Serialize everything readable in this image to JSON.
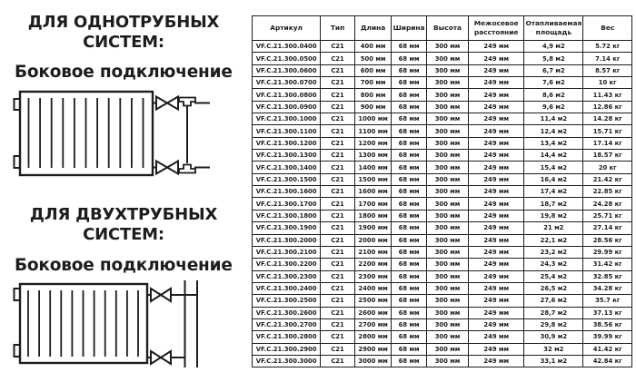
{
  "colors": {
    "background": "#ffffff",
    "ink": "#1d1d1d"
  },
  "left_panel": {
    "section1": {
      "title_line1": "ДЛЯ ОДНОТРУБНЫХ",
      "title_line2": "СИСТЕМ:",
      "subtitle": "Боковое подключение",
      "diagram": "single-pipe-side-connection-radiator"
    },
    "section2": {
      "title_line1": "ДЛЯ ДВУХТРУБНЫХ",
      "title_line2": "СИСТЕМ:",
      "subtitle": "Боковое подключение",
      "diagram": "two-pipe-side-connection-radiator"
    }
  },
  "table": {
    "headers": [
      "Артикул",
      "Тип",
      "Длина",
      "Ширина",
      "Высота",
      "Межосевое расстояние",
      "Отапливаемая площадь",
      "Вес"
    ],
    "rows": [
      [
        "VF.C.21.300.0400",
        "C21",
        "400 мм",
        "68 мм",
        "300 мм",
        "249 мм",
        "4,9 м2",
        "5.72 кг"
      ],
      [
        "VF.C.21.300.0500",
        "C21",
        "500 мм",
        "68 мм",
        "300 мм",
        "249 мм",
        "5,8 м2",
        "7.14 кг"
      ],
      [
        "VF.C.21.300.0600",
        "C21",
        "600 мм",
        "68 мм",
        "300 мм",
        "249 мм",
        "6,7 м2",
        "8.57 кг"
      ],
      [
        "VF.C.21.300.0700",
        "C21",
        "700 мм",
        "68 мм",
        "300 мм",
        "249 мм",
        "7,6 м2",
        "10 кг"
      ],
      [
        "VF.C.21.300.0800",
        "C21",
        "800 мм",
        "68 мм",
        "300 мм",
        "249 мм",
        "8,6 м2",
        "11.43 кг"
      ],
      [
        "VF.C.21.300.0900",
        "C21",
        "900 мм",
        "68 мм",
        "300 мм",
        "249 мм",
        "9,6 м2",
        "12.86 кг"
      ],
      [
        "VF.C.21.300.1000",
        "C21",
        "1000 мм",
        "68 мм",
        "300 мм",
        "249 мм",
        "11,4 м2",
        "14.28 кг"
      ],
      [
        "VF.C.21.300.1100",
        "C21",
        "1100 мм",
        "68 мм",
        "300 мм",
        "249 мм",
        "12,4 м2",
        "15.71 кг"
      ],
      [
        "VF.C.21.300.1200",
        "C21",
        "1200 мм",
        "68 мм",
        "300 мм",
        "249 мм",
        "13,4 м2",
        "17.14 кг"
      ],
      [
        "VF.C.21.300.1300",
        "C21",
        "1300 мм",
        "68 мм",
        "300 мм",
        "249 мм",
        "14,4 м2",
        "18.57 кг"
      ],
      [
        "VF.C.21.300.1400",
        "C21",
        "1400 мм",
        "68 мм",
        "300 мм",
        "249 мм",
        "15,4 м2",
        "20 кг"
      ],
      [
        "VF.C.21.300.1500",
        "C21",
        "1500 мм",
        "68 мм",
        "300 мм",
        "249 мм",
        "16,4 м2",
        "21.42 кг"
      ],
      [
        "VF.C.21.300.1600",
        "C21",
        "1600 мм",
        "68 мм",
        "300 мм",
        "249 мм",
        "17,4 м2",
        "22.85 кг"
      ],
      [
        "VF.C.21.300.1700",
        "C21",
        "1700 мм",
        "68 мм",
        "300 мм",
        "249 мм",
        "18,7 м2",
        "24.28 кг"
      ],
      [
        "VF.C.21.300.1800",
        "C21",
        "1800 мм",
        "68 мм",
        "300 мм",
        "249 мм",
        "19,8 м2",
        "25.71 кг"
      ],
      [
        "VF.C.21.300.1900",
        "C21",
        "1900 мм",
        "68 мм",
        "300 мм",
        "249 мм",
        "21 м2",
        "27.14 кг"
      ],
      [
        "VF.C.21.300.2000",
        "C21",
        "2000 мм",
        "68 мм",
        "300 мм",
        "249 мм",
        "22,1 м2",
        "28.56 кг"
      ],
      [
        "VF.C.21.300.2100",
        "C21",
        "2100 мм",
        "68 мм",
        "300 мм",
        "249 мм",
        "23,2 м2",
        "29.99 кг"
      ],
      [
        "VF.C.21.300.2200",
        "C21",
        "2200 мм",
        "68 мм",
        "300 мм",
        "249 мм",
        "24,3 м2",
        "31.42 кг"
      ],
      [
        "VF.C.21.300.2300",
        "C21",
        "2300 мм",
        "68 мм",
        "300 мм",
        "249 мм",
        "25,4 м2",
        "32.85 кг"
      ],
      [
        "VF.C.21.300.2400",
        "C21",
        "2400 мм",
        "68 мм",
        "300 мм",
        "249 мм",
        "26,5 м2",
        "34.28 кг"
      ],
      [
        "VF.C.21.300.2500",
        "C21",
        "2500 мм",
        "68 мм",
        "300 мм",
        "249 мм",
        "27,6 м2",
        "35.7 кг"
      ],
      [
        "VF.C.21.300.2600",
        "C21",
        "2600 мм",
        "68 мм",
        "300 мм",
        "249 мм",
        "28,7 м2",
        "37.13 кг"
      ],
      [
        "VF.C.21.300.2700",
        "C21",
        "2700 мм",
        "68 мм",
        "300 мм",
        "249 мм",
        "29,8 м2",
        "38.56 кг"
      ],
      [
        "VF.C.21.300.2800",
        "C21",
        "2800 мм",
        "68 мм",
        "300 мм",
        "249 мм",
        "30,9 м2",
        "39.99 кг"
      ],
      [
        "VF.C.21.300.2900",
        "C21",
        "2900 мм",
        "68 мм",
        "300 мм",
        "249 мм",
        "32 м2",
        "41.42 кг"
      ],
      [
        "VF.C.21.300.3000",
        "C21",
        "3000 мм",
        "68 мм",
        "300 мм",
        "249 мм",
        "33,1 м2",
        "42.84 кг"
      ]
    ]
  }
}
